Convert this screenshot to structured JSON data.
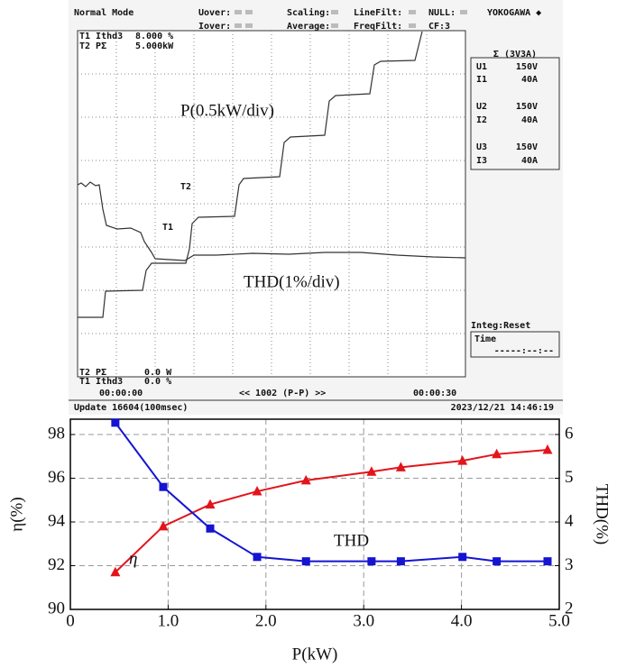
{
  "screen": {
    "header": [
      "Normal Mode",
      "Uover:",
      "Iover:",
      "Scaling:",
      "Average:",
      "LineFilt:",
      "FreqFilt:",
      "NULL:",
      "CF:3",
      "YOKOGAWA ◆"
    ],
    "trace_info": [
      "T1 Ithd3",
      "8.000 %",
      "T2 PΣ",
      "5.000kW"
    ],
    "panel": {
      "title": "Σ (3V3A)",
      "rows": [
        [
          "U1",
          "150V"
        ],
        [
          "I1",
          "40A"
        ],
        [
          "U2",
          "150V"
        ],
        [
          "I2",
          "40A"
        ],
        [
          "U3",
          "150V"
        ],
        [
          "I3",
          "40A"
        ]
      ]
    },
    "integ": [
      "Integ:Reset",
      "Time",
      "-----:--:--"
    ],
    "cursor": [
      "T2 PΣ",
      "0.0 W",
      "T1 Ithd3",
      "0.0 %"
    ],
    "time": [
      "00:00:00",
      "<< 1002 (P-P) >>",
      "00:00:30"
    ],
    "footer": [
      "Update 16604(100msec)",
      "2023/12/21 14:46:19"
    ],
    "labels": [
      "T2",
      "T1"
    ],
    "annotations": [
      "P(0.5kW/div)",
      "THD(1%/div)"
    ]
  },
  "chart_data": {
    "type": "line",
    "x_label": "P(kW)",
    "y_label": "η(%)",
    "y2_label": "THD(%)",
    "x": [
      0.46,
      0.95,
      1.43,
      1.91,
      2.41,
      3.08,
      3.38,
      4.01,
      4.36,
      4.88
    ],
    "series": [
      {
        "name": "η",
        "color": "#e3141b",
        "marker": "triangle",
        "values": [
          91.7,
          93.8,
          94.8,
          95.4,
          95.9,
          96.3,
          96.5,
          96.8,
          97.1,
          97.3
        ]
      },
      {
        "name": "THD",
        "color": "#1414d2",
        "marker": "square",
        "axis": "y2",
        "values": [
          6.27,
          4.8,
          3.85,
          3.2,
          3.1,
          3.1,
          3.1,
          3.2,
          3.1,
          3.1
        ]
      }
    ],
    "xlim": [
      0,
      5
    ],
    "xticks": [
      0,
      {
        "value": 1,
        "label": "1.0"
      },
      {
        "value": 2,
        "label": "2.0"
      },
      {
        "value": 3,
        "label": "3.0"
      },
      {
        "value": 4,
        "label": "4.0"
      },
      {
        "value": 5,
        "label": "5.0"
      }
    ],
    "ylim": [
      90,
      98.7
    ],
    "yticks": [
      90,
      92,
      94,
      96,
      98
    ],
    "y2lim": [
      2,
      6.35
    ],
    "y2ticks": [
      2,
      3,
      4,
      5,
      6
    ],
    "grid": true
  }
}
